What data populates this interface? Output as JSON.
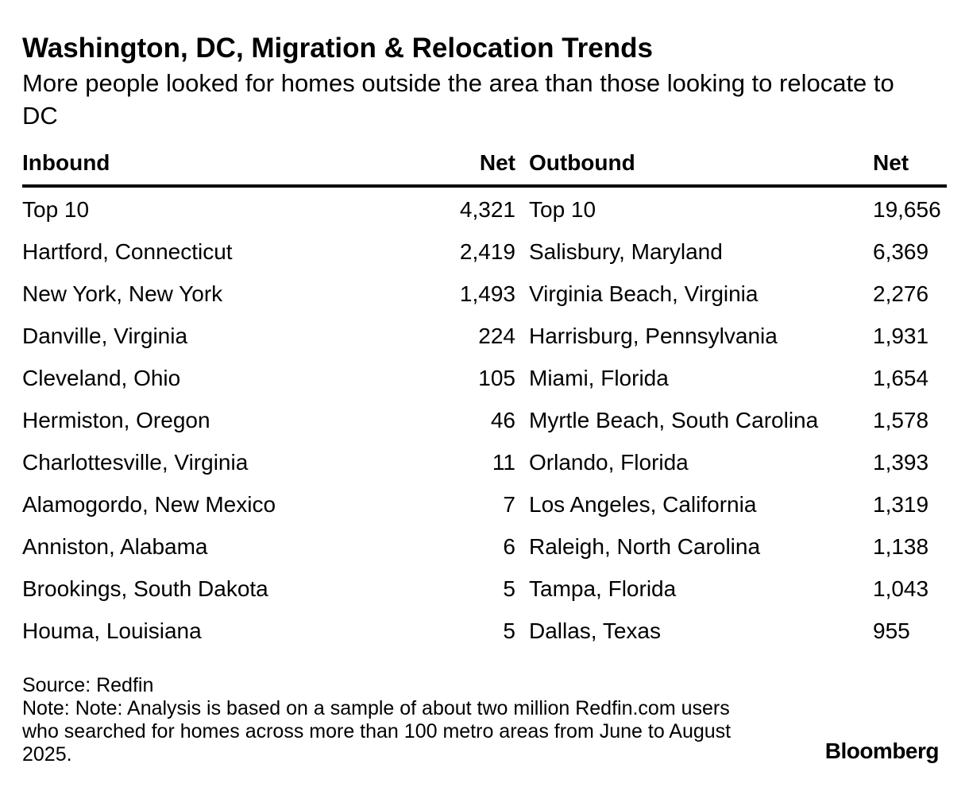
{
  "title": "Washington, DC, Migration & Relocation Trends",
  "subtitle": "More people looked for homes outside the area than those looking to relocate to DC",
  "headers": {
    "inbound": "Inbound",
    "inbound_net": "Net",
    "outbound": "Outbound",
    "outbound_net": "Net"
  },
  "rows": [
    {
      "in_name": "Top 10",
      "in_net": "4,321",
      "out_name": "Top 10",
      "out_net": "19,656"
    },
    {
      "in_name": "Hartford, Connecticut",
      "in_net": "2,419",
      "out_name": "Salisbury, Maryland",
      "out_net": "6,369"
    },
    {
      "in_name": "New York, New York",
      "in_net": "1,493",
      "out_name": "Virginia Beach, Virginia",
      "out_net": "2,276"
    },
    {
      "in_name": "Danville, Virginia",
      "in_net": "224",
      "out_name": "Harrisburg, Pennsylvania",
      "out_net": "1,931"
    },
    {
      "in_name": "Cleveland, Ohio",
      "in_net": "105",
      "out_name": "Miami, Florida",
      "out_net": "1,654"
    },
    {
      "in_name": "Hermiston, Oregon",
      "in_net": "46",
      "out_name": "Myrtle Beach, South Carolina",
      "out_net": "1,578"
    },
    {
      "in_name": "Charlottesville, Virginia",
      "in_net": "11",
      "out_name": "Orlando, Florida",
      "out_net": "1,393"
    },
    {
      "in_name": "Alamogordo, New Mexico",
      "in_net": "7",
      "out_name": "Los Angeles, California",
      "out_net": "1,319"
    },
    {
      "in_name": "Anniston, Alabama",
      "in_net": "6",
      "out_name": "Raleigh, North Carolina",
      "out_net": "1,138"
    },
    {
      "in_name": "Brookings, South Dakota",
      "in_net": "5",
      "out_name": "Tampa, Florida",
      "out_net": "1,043"
    },
    {
      "in_name": "Houma, Louisiana",
      "in_net": "5",
      "out_name": "Dallas, Texas",
      "out_net": "955"
    }
  ],
  "footer": {
    "source": "Source: Redfin",
    "note": "Note: Note: Analysis is based on a sample of about two million Redfin.com users who searched for homes across more than 100 metro areas from June to August 2025."
  },
  "brand": "Bloomberg",
  "chart_data": {
    "type": "table",
    "title": "Washington, DC, Migration & Relocation Trends",
    "subtitle": "More people looked for homes outside the area than those looking to relocate to DC",
    "columns": [
      "Inbound",
      "Net",
      "Outbound",
      "Net"
    ],
    "inbound": {
      "categories": [
        "Top 10",
        "Hartford, Connecticut",
        "New York, New York",
        "Danville, Virginia",
        "Cleveland, Ohio",
        "Hermiston, Oregon",
        "Charlottesville, Virginia",
        "Alamogordo, New Mexico",
        "Anniston, Alabama",
        "Brookings, South Dakota",
        "Houma, Louisiana"
      ],
      "values": [
        4321,
        2419,
        1493,
        224,
        105,
        46,
        11,
        7,
        6,
        5,
        5
      ]
    },
    "outbound": {
      "categories": [
        "Top 10",
        "Salisbury, Maryland",
        "Virginia Beach, Virginia",
        "Harrisburg, Pennsylvania",
        "Miami, Florida",
        "Myrtle Beach, South Carolina",
        "Orlando, Florida",
        "Los Angeles, California",
        "Raleigh, North Carolina",
        "Tampa, Florida",
        "Dallas, Texas"
      ],
      "values": [
        19656,
        6369,
        2276,
        1931,
        1654,
        1578,
        1393,
        1319,
        1138,
        1043,
        955
      ]
    }
  }
}
